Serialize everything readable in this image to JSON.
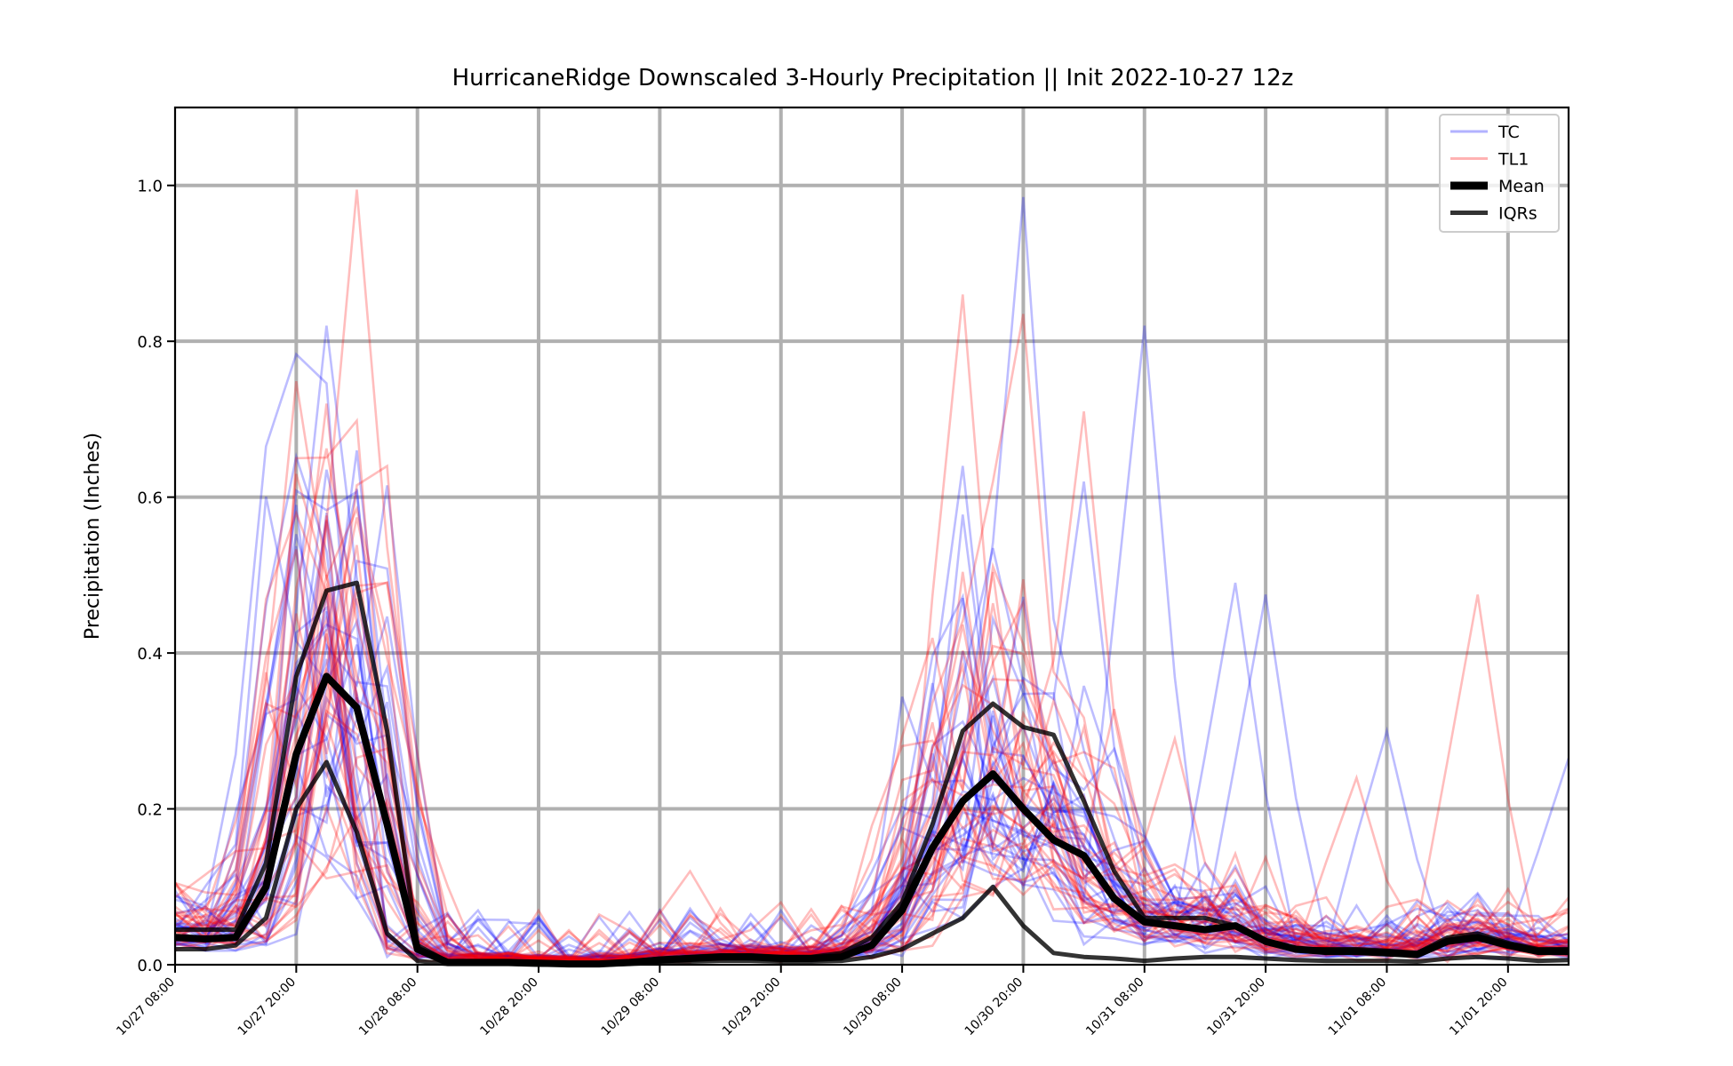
{
  "chart_data": {
    "type": "line",
    "title": "HurricaneRidge Downscaled 3-Hourly Precipitation || Init 2022-10-27 12z",
    "xlabel": "",
    "ylabel": "Precipitation (Inches)",
    "x_tick_labels": [
      "10/27 08:00",
      "10/27 20:00",
      "10/28 08:00",
      "10/28 20:00",
      "10/29 08:00",
      "10/29 20:00",
      "10/30 08:00",
      "10/30 20:00",
      "10/31 08:00",
      "10/31 20:00",
      "11/01 08:00",
      "11/01 20:00"
    ],
    "x_ticks": [
      "2022-10-27 08:00",
      "2022-10-27 20:00",
      "2022-10-28 08:00",
      "2022-10-28 20:00",
      "2022-10-29 08:00",
      "2022-10-29 20:00",
      "2022-10-30 08:00",
      "2022-10-30 20:00",
      "2022-10-31 08:00",
      "2022-10-31 20:00",
      "2022-11-01 08:00",
      "2022-11-01 20:00"
    ],
    "xlim": [
      "2022-10-27 08:00",
      "2022-11-02 02:00"
    ],
    "y_tick_labels": [
      "0.0",
      "0.2",
      "0.4",
      "0.6",
      "0.8",
      "1.0"
    ],
    "ylim": [
      0,
      1.1
    ],
    "grid": true,
    "legend_position": "top-right",
    "legend": [
      {
        "label": "TC",
        "style": "ensemble-tc"
      },
      {
        "label": "TL1",
        "style": "ensemble-tl1"
      },
      {
        "label": "Mean",
        "style": "mean"
      },
      {
        "label": "IQRs",
        "style": "iqr"
      }
    ],
    "colors": {
      "tc": "#0000ff",
      "tl1": "#ff0000",
      "mean": "#000000",
      "iqr": "#000000",
      "grid": "#b0b0b0"
    },
    "x": [
      "2022-10-27 08:00",
      "2022-10-27 11:00",
      "2022-10-27 14:00",
      "2022-10-27 17:00",
      "2022-10-27 20:00",
      "2022-10-27 23:00",
      "2022-10-28 02:00",
      "2022-10-28 05:00",
      "2022-10-28 08:00",
      "2022-10-28 11:00",
      "2022-10-28 14:00",
      "2022-10-28 17:00",
      "2022-10-28 20:00",
      "2022-10-28 23:00",
      "2022-10-29 02:00",
      "2022-10-29 05:00",
      "2022-10-29 08:00",
      "2022-10-29 11:00",
      "2022-10-29 14:00",
      "2022-10-29 17:00",
      "2022-10-29 20:00",
      "2022-10-29 23:00",
      "2022-10-30 02:00",
      "2022-10-30 05:00",
      "2022-10-30 08:00",
      "2022-10-30 11:00",
      "2022-10-30 14:00",
      "2022-10-30 17:00",
      "2022-10-30 20:00",
      "2022-10-30 23:00",
      "2022-10-31 02:00",
      "2022-10-31 05:00",
      "2022-10-31 08:00",
      "2022-10-31 11:00",
      "2022-10-31 14:00",
      "2022-10-31 17:00",
      "2022-10-31 20:00",
      "2022-10-31 23:00",
      "2022-11-01 02:00",
      "2022-11-01 05:00",
      "2022-11-01 08:00",
      "2022-11-01 11:00",
      "2022-11-01 14:00",
      "2022-11-01 17:00",
      "2022-11-01 20:00",
      "2022-11-01 23:00",
      "2022-11-02 02:00"
    ],
    "series": [
      {
        "name": "Mean",
        "style": "mean",
        "values": [
          0.035,
          0.033,
          0.035,
          0.1,
          0.27,
          0.37,
          0.33,
          0.18,
          0.02,
          0.003,
          0.003,
          0.003,
          0.002,
          0.001,
          0.001,
          0.003,
          0.006,
          0.008,
          0.01,
          0.01,
          0.008,
          0.008,
          0.01,
          0.025,
          0.07,
          0.15,
          0.21,
          0.245,
          0.2,
          0.16,
          0.14,
          0.085,
          0.055,
          0.05,
          0.045,
          0.05,
          0.03,
          0.02,
          0.017,
          0.017,
          0.015,
          0.013,
          0.03,
          0.035,
          0.025,
          0.017,
          0.017
        ]
      },
      {
        "name": "IQR upper",
        "style": "iqr",
        "values": [
          0.045,
          0.045,
          0.045,
          0.13,
          0.37,
          0.48,
          0.49,
          0.3,
          0.025,
          0.004,
          0.004,
          0.003,
          0.003,
          0.002,
          0.002,
          0.004,
          0.008,
          0.01,
          0.012,
          0.012,
          0.01,
          0.01,
          0.015,
          0.035,
          0.08,
          0.18,
          0.3,
          0.335,
          0.305,
          0.295,
          0.21,
          0.12,
          0.06,
          0.06,
          0.06,
          0.05,
          0.03,
          0.02,
          0.02,
          0.02,
          0.018,
          0.015,
          0.035,
          0.04,
          0.028,
          0.02,
          0.02
        ]
      },
      {
        "name": "IQR lower",
        "style": "iqr",
        "values": [
          0.02,
          0.02,
          0.025,
          0.06,
          0.2,
          0.26,
          0.17,
          0.04,
          0.005,
          0.001,
          0.001,
          0.001,
          0.0,
          0.0,
          0.0,
          0.001,
          0.003,
          0.004,
          0.005,
          0.005,
          0.004,
          0.004,
          0.005,
          0.01,
          0.02,
          0.04,
          0.06,
          0.1,
          0.05,
          0.015,
          0.01,
          0.008,
          0.005,
          0.008,
          0.01,
          0.01,
          0.008,
          0.006,
          0.005,
          0.005,
          0.005,
          0.004,
          0.008,
          0.01,
          0.008,
          0.005,
          0.006
        ]
      }
    ],
    "ensemble_stats": {
      "base": [
        0.04,
        0.038,
        0.04,
        0.11,
        0.28,
        0.37,
        0.33,
        0.18,
        0.02,
        0.003,
        0.003,
        0.003,
        0.002,
        0.001,
        0.001,
        0.003,
        0.006,
        0.008,
        0.01,
        0.01,
        0.008,
        0.008,
        0.01,
        0.025,
        0.07,
        0.15,
        0.21,
        0.245,
        0.2,
        0.16,
        0.14,
        0.085,
        0.055,
        0.05,
        0.045,
        0.05,
        0.03,
        0.02,
        0.017,
        0.017,
        0.015,
        0.013,
        0.03,
        0.035,
        0.025,
        0.017,
        0.017
      ],
      "tc_spikes": [
        [
          0,
          5,
          0.82
        ],
        [
          1,
          4,
          0.59
        ],
        [
          2,
          6,
          0.66
        ],
        [
          3,
          28,
          0.985
        ],
        [
          4,
          26,
          0.64
        ],
        [
          5,
          32,
          0.82
        ],
        [
          6,
          35,
          0.49
        ],
        [
          7,
          36,
          0.475
        ],
        [
          8,
          40,
          0.3
        ],
        [
          9,
          30,
          0.62
        ],
        [
          10,
          46,
          0.265
        ]
      ],
      "tl1_spikes": [
        [
          0,
          26,
          0.86
        ],
        [
          1,
          28,
          0.835
        ],
        [
          2,
          30,
          0.71
        ],
        [
          3,
          5,
          0.72
        ],
        [
          4,
          43,
          0.475
        ],
        [
          5,
          17,
          0.12
        ],
        [
          6,
          39,
          0.24
        ],
        [
          7,
          3,
          0.335
        ],
        [
          8,
          33,
          0.29
        ]
      ]
    }
  }
}
